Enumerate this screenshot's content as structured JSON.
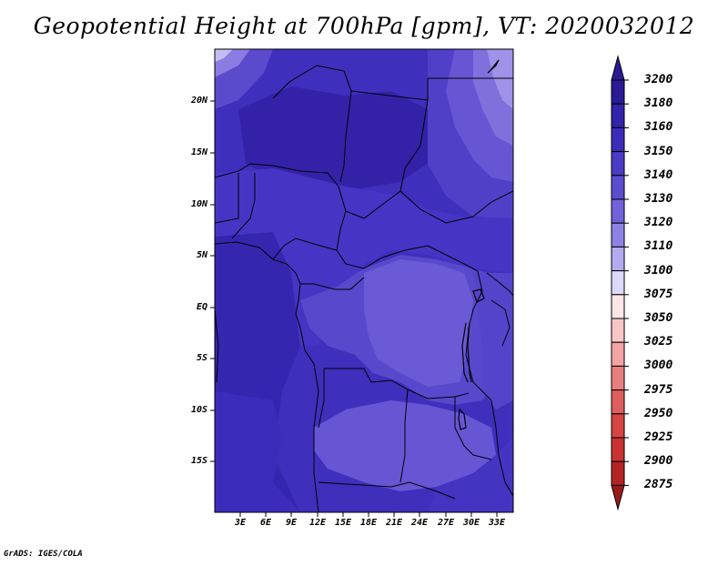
{
  "title": "Geopotential Height at 700hPa [gpm], VT: 2020032012",
  "credit": "GrADS: IGES/COLA",
  "map": {
    "lat_labels": [
      "20N",
      "15N",
      "10N",
      "5N",
      "EQ",
      "5S",
      "10S",
      "15S"
    ],
    "lon_labels": [
      "3E",
      "6E",
      "9E",
      "12E",
      "15E",
      "18E",
      "21E",
      "24E",
      "27E",
      "30E",
      "33E"
    ],
    "field_colors": {
      "c3200": "#2b1ea0",
      "c3180": "#3526b0",
      "c3160": "#4130c0",
      "c3150": "#5040c8",
      "c3140": "#6656d4",
      "c3130": "#7f70dc",
      "c3120": "#9f92e8",
      "c3110": "#c4bdf2",
      "c3100": "#e4e0fa"
    }
  },
  "legend": {
    "levels": [
      "3200",
      "3180",
      "3160",
      "3150",
      "3140",
      "3130",
      "3120",
      "3110",
      "3100",
      "3075",
      "3050",
      "3025",
      "3000",
      "2975",
      "2950",
      "2925",
      "2900",
      "2875"
    ],
    "colors": [
      "#2a1a96",
      "#3322aa",
      "#3d2cbb",
      "#4a3cc4",
      "#5a4dcf",
      "#7162da",
      "#8e82e6",
      "#b3aaf0",
      "#dcd8fa",
      "#fde6e6",
      "#f9c6c6",
      "#f3a3a3",
      "#e87f7f",
      "#de5e5e",
      "#d64444",
      "#c83232",
      "#b52424",
      "#9a1a1a"
    ]
  }
}
